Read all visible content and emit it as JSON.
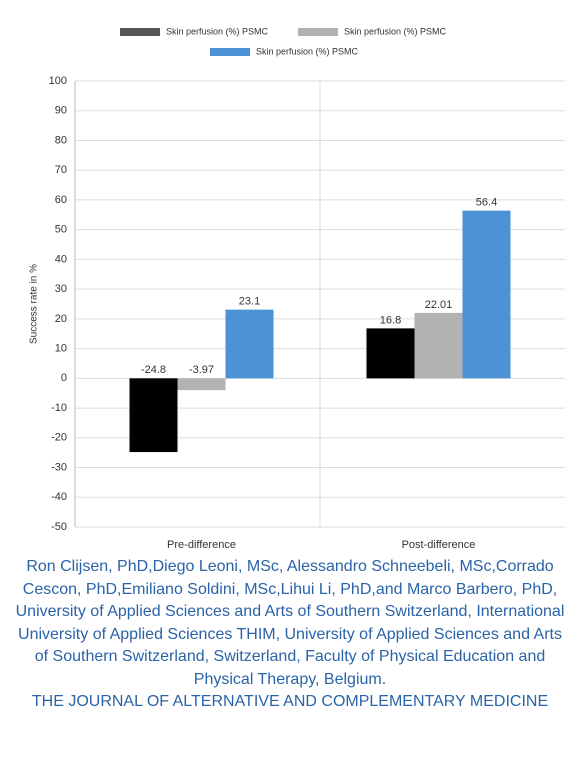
{
  "chart_data": {
    "type": "bar",
    "y_label": "Success rate in %",
    "categories": [
      "Pre-difference",
      "Post-difference"
    ],
    "series": [
      {
        "name": "Skin perfusion (%) PSMC",
        "color": "#000000",
        "values": [
          -24.8,
          16.8
        ]
      },
      {
        "name": "Skin perfusion (%) PSMC",
        "color": "#b2b2b2",
        "values": [
          -3.97,
          22.01
        ]
      },
      {
        "name": "Skin perfusion (%) PSMC",
        "color": "#4b92d6",
        "values": [
          23.1,
          56.4
        ]
      }
    ],
    "ylim": [
      -50,
      100
    ],
    "yticks": [
      -50,
      -40,
      -30,
      -20,
      -10,
      0,
      10,
      20,
      30,
      40,
      50,
      60,
      70,
      80,
      90,
      100
    ],
    "grid": true
  },
  "caption": "Ron Clijsen, PhD,Diego Leoni, MSc, Alessandro Schneebeli, MSc,Corrado Cescon, PhD,Emiliano Soldini, MSc,Lihui Li, PhD,and Marco Barbero, PhD, University of Applied Sciences and Arts of Southern Switzerland, International University of Applied Sciences THIM, University of Applied Sciences and Arts of Southern Switzerland, Switzerland, Faculty of Physical Education and Physical Therapy, Belgium.",
  "journal": "THE JOURNAL OF ALTERNATIVE AND COMPLEMENTARY MEDICINE"
}
